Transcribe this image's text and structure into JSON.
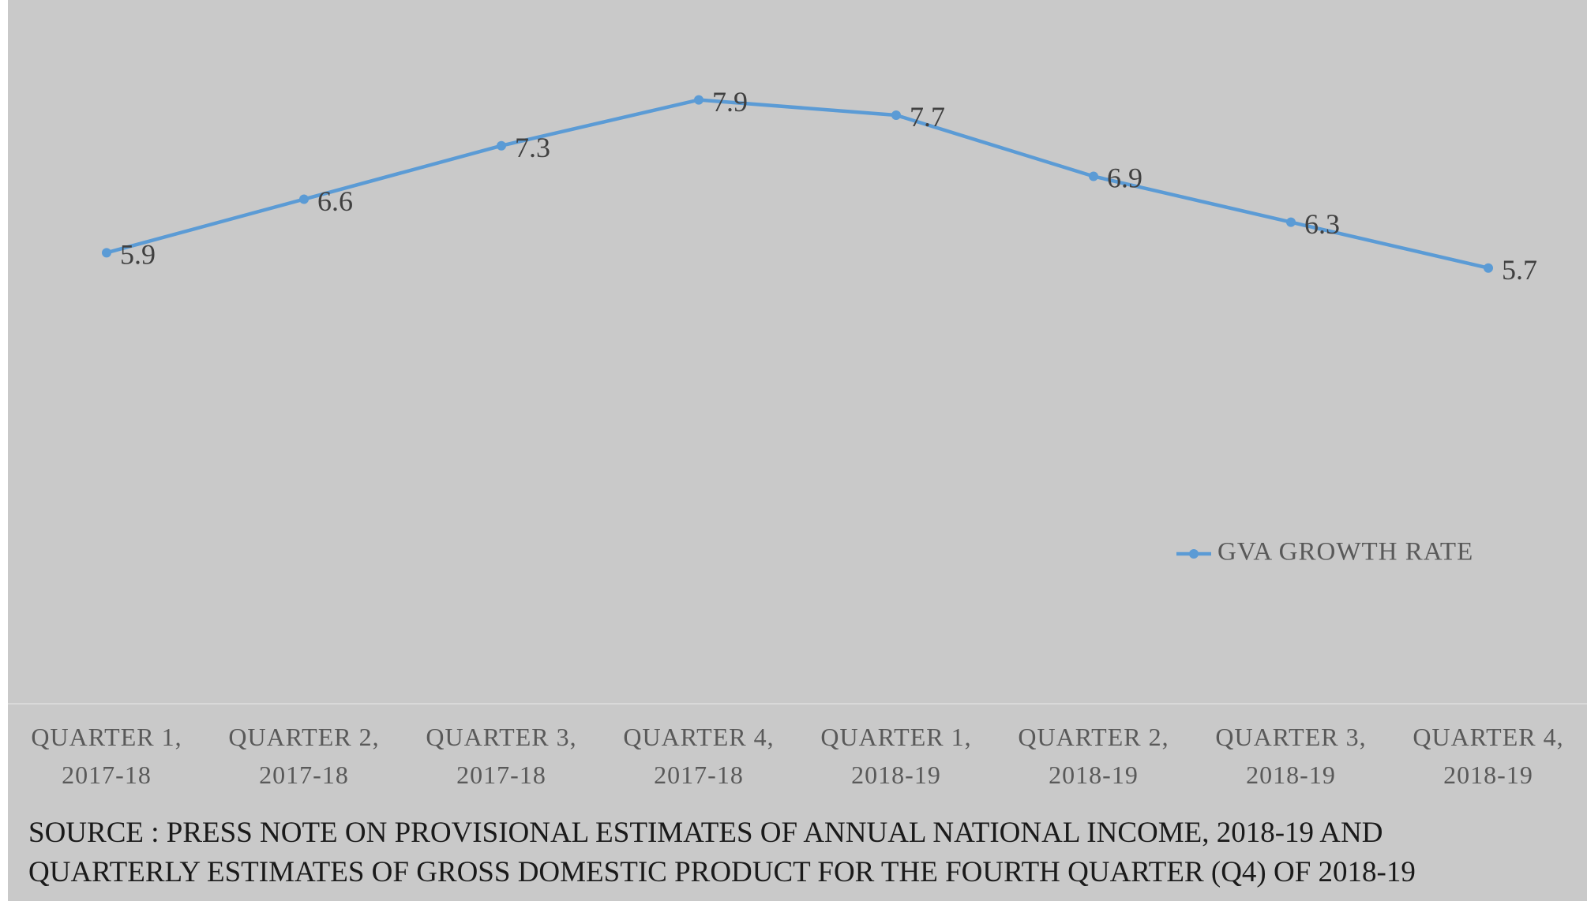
{
  "chart_data": {
    "type": "line",
    "categories": [
      "QUARTER 1, 2017-18",
      "QUARTER 2, 2017-18",
      "QUARTER 3, 2017-18",
      "QUARTER 4, 2017-18",
      "QUARTER 1, 2018-19",
      "QUARTER 2, 2018-19",
      "QUARTER 3, 2018-19",
      "QUARTER 4, 2018-19"
    ],
    "series": [
      {
        "name": "GVA GROWTH RATE",
        "color": "#5b9bd5",
        "values": [
          5.9,
          6.6,
          7.3,
          7.9,
          7.7,
          6.9,
          6.3,
          5.7
        ]
      }
    ],
    "ylim": [
      0,
      9
    ],
    "legend": "right",
    "source": [
      "SOURCE : PRESS NOTE ON PROVISIONAL ESTIMATES OF ANNUAL NATIONAL INCOME, 2018-19 AND",
      "QUARTERLY ESTIMATES OF GROSS DOMESTIC PRODUCT FOR THE FOURTH QUARTER (Q4) OF 2018-19"
    ]
  }
}
